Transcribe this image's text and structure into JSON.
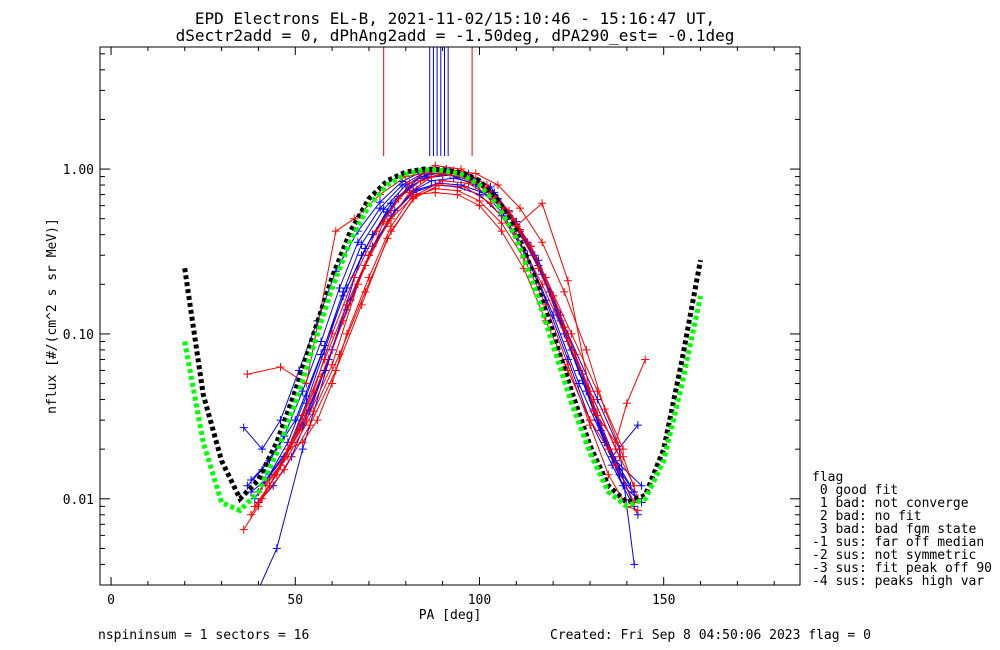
{
  "title_line1": "EPD Electrons EL-B, 2021-11-02/15:10:46 - 15:16:47 UT,",
  "title_line2": "dSectr2add = 0, dPhAng2add = -1.50deg, dPA290_est=  -0.1deg",
  "footer": {
    "left": "nspininsum =  1  sectors = 16",
    "right": "Created: Fri Sep  8 04:50:06 2023   flag = 0"
  },
  "legend": {
    "title": "flag",
    "items": [
      " 0 good fit",
      " 1 bad: not converge",
      " 2 bad: no fit",
      " 3 bad: bad fgm state",
      "-1 sus: far off median",
      "-2 sus: not symmetric",
      "-3 sus: fit peak off 90",
      "-4 sus: peaks high var"
    ]
  },
  "colors": {
    "red_series": "#ff0000",
    "blue_series": "#0000ff",
    "fit_black": "#000000",
    "fit_green": "#00ff00"
  },
  "chart_data": {
    "type": "line",
    "xlabel": "PA [deg]",
    "ylabel": "nflux [#/(cm^2 s sr MeV)]",
    "xlim": [
      -3,
      187
    ],
    "ylim": [
      0.003,
      5.5
    ],
    "yscale": "log",
    "xticks": [
      0,
      50,
      100,
      150
    ],
    "xtick_labels": [
      "0",
      "50",
      "100",
      "150"
    ],
    "yticks": [
      0.01,
      0.1,
      1.0
    ],
    "ytick_labels": [
      "0.01",
      "0.10",
      "1.00"
    ],
    "vertical_markers": [
      {
        "color": "#ff0000",
        "x": [
          74,
          98
        ],
        "y_from": 1.2
      },
      {
        "color": "#0000ff",
        "x": [
          86.5,
          87.5,
          88.5,
          89.5,
          90.5,
          91.5
        ],
        "y_from": 1.2
      }
    ],
    "fit_curves": [
      {
        "color": "#000000",
        "x": [
          20,
          25,
          30,
          35,
          40,
          45,
          50,
          55,
          60,
          65,
          70,
          75,
          80,
          85,
          90,
          95,
          100,
          105,
          110,
          115,
          120,
          125,
          130,
          135,
          140,
          145,
          150,
          155,
          160
        ],
        "y": [
          0.25,
          0.043,
          0.017,
          0.01,
          0.013,
          0.022,
          0.045,
          0.1,
          0.22,
          0.42,
          0.66,
          0.85,
          0.96,
          1.0,
          0.99,
          0.95,
          0.85,
          0.65,
          0.42,
          0.22,
          0.1,
          0.045,
          0.021,
          0.012,
          0.0095,
          0.0105,
          0.02,
          0.07,
          0.28
        ]
      },
      {
        "color": "#00ff00",
        "x": [
          20,
          25,
          30,
          35,
          40,
          45,
          50,
          55,
          60,
          65,
          70,
          75,
          80,
          85,
          90,
          95,
          100,
          105,
          110,
          115,
          120,
          125,
          130,
          135,
          140,
          145,
          150,
          155,
          160
        ],
        "y": [
          0.09,
          0.022,
          0.0095,
          0.0085,
          0.011,
          0.019,
          0.038,
          0.085,
          0.19,
          0.37,
          0.6,
          0.8,
          0.93,
          0.99,
          0.98,
          0.93,
          0.8,
          0.6,
          0.38,
          0.19,
          0.085,
          0.038,
          0.019,
          0.011,
          0.009,
          0.01,
          0.017,
          0.05,
          0.17
        ]
      }
    ],
    "series": [
      {
        "color": "#0000ff",
        "x": [
          37,
          41,
          47,
          52,
          57,
          62,
          67,
          73,
          79,
          85,
          91,
          97,
          103,
          109,
          115,
          121,
          127,
          132,
          137,
          142
        ],
        "y": [
          0.012,
          0.015,
          0.024,
          0.045,
          0.09,
          0.19,
          0.36,
          0.58,
          0.8,
          0.95,
          0.97,
          0.9,
          0.74,
          0.5,
          0.3,
          0.14,
          0.06,
          0.03,
          0.016,
          0.011
        ]
      },
      {
        "color": "#0000ff",
        "x": [
          38,
          42,
          48,
          53,
          58,
          63,
          69,
          75,
          81,
          86,
          92,
          98,
          104,
          110,
          116,
          122,
          128,
          133,
          138,
          143
        ],
        "y": [
          0.011,
          0.013,
          0.02,
          0.038,
          0.08,
          0.17,
          0.33,
          0.55,
          0.78,
          0.9,
          0.92,
          0.85,
          0.7,
          0.46,
          0.26,
          0.12,
          0.052,
          0.026,
          0.014,
          0.01
        ]
      },
      {
        "color": "#0000ff",
        "x": [
          36,
          41,
          46,
          51,
          56,
          61,
          67,
          73,
          79,
          85,
          91,
          97,
          103,
          108,
          114,
          120,
          126,
          131,
          136,
          143
        ],
        "y": [
          0.027,
          0.02,
          0.03,
          0.06,
          0.12,
          0.24,
          0.42,
          0.63,
          0.84,
          0.98,
          1.0,
          0.93,
          0.78,
          0.55,
          0.34,
          0.17,
          0.075,
          0.035,
          0.018,
          0.028
        ]
      },
      {
        "color": "#0000ff",
        "x": [
          40,
          44,
          49,
          54,
          59,
          64,
          70,
          76,
          82,
          87,
          93,
          99,
          105,
          111,
          117,
          123,
          129,
          134,
          139,
          144
        ],
        "y": [
          0.0095,
          0.012,
          0.018,
          0.034,
          0.07,
          0.15,
          0.3,
          0.52,
          0.74,
          0.85,
          0.88,
          0.82,
          0.66,
          0.42,
          0.23,
          0.1,
          0.045,
          0.022,
          0.012,
          0.0095
        ]
      },
      {
        "color": "#0000ff",
        "x": [
          39,
          43,
          48,
          53,
          58,
          63,
          68,
          74,
          80,
          86,
          92,
          98,
          104,
          110,
          116,
          122,
          128,
          133,
          138,
          142
        ],
        "y": [
          0.01,
          0.014,
          0.022,
          0.042,
          0.085,
          0.18,
          0.35,
          0.57,
          0.8,
          0.93,
          0.95,
          0.88,
          0.72,
          0.48,
          0.28,
          0.13,
          0.057,
          0.028,
          0.015,
          0.009
        ]
      },
      {
        "color": "#0000ff",
        "x": [
          37,
          45,
          52,
          60,
          68,
          76,
          84,
          92,
          100,
          108,
          116,
          124,
          132,
          138,
          142
        ],
        "y": [
          0.002,
          0.005,
          0.02,
          0.08,
          0.3,
          0.62,
          0.9,
          0.97,
          0.82,
          0.52,
          0.26,
          0.1,
          0.04,
          0.02,
          0.004
        ]
      },
      {
        "color": "#0000ff",
        "x": [
          38,
          43,
          50,
          57,
          64,
          71,
          78,
          85,
          92,
          99,
          106,
          113,
          120,
          127,
          134,
          141
        ],
        "y": [
          0.013,
          0.017,
          0.03,
          0.075,
          0.19,
          0.4,
          0.68,
          0.88,
          0.92,
          0.8,
          0.55,
          0.3,
          0.13,
          0.05,
          0.022,
          0.012
        ]
      },
      {
        "color": "#0000ff",
        "x": [
          40,
          46,
          52,
          58,
          64,
          70,
          76,
          82,
          88,
          94,
          100,
          106,
          112,
          118,
          124,
          130,
          136,
          143
        ],
        "y": [
          0.011,
          0.016,
          0.028,
          0.06,
          0.14,
          0.3,
          0.52,
          0.72,
          0.8,
          0.78,
          0.7,
          0.52,
          0.32,
          0.16,
          0.07,
          0.03,
          0.016,
          0.008
        ]
      },
      {
        "color": "#0000ff",
        "x": [
          41,
          47,
          53,
          59,
          65,
          71,
          77,
          83,
          89,
          95,
          101,
          107,
          113,
          119,
          125,
          131,
          137,
          144
        ],
        "y": [
          0.012,
          0.018,
          0.033,
          0.07,
          0.16,
          0.34,
          0.56,
          0.75,
          0.82,
          0.8,
          0.72,
          0.56,
          0.36,
          0.18,
          0.08,
          0.034,
          0.017,
          0.012
        ]
      },
      {
        "color": "#ff0000",
        "x": [
          36,
          40,
          46,
          52,
          58,
          64,
          70,
          76,
          82,
          88,
          94,
          100,
          106,
          112,
          118,
          124,
          130,
          135,
          140,
          143
        ],
        "y": [
          0.0065,
          0.009,
          0.016,
          0.032,
          0.07,
          0.15,
          0.3,
          0.5,
          0.68,
          0.76,
          0.74,
          0.64,
          0.47,
          0.29,
          0.15,
          0.065,
          0.028,
          0.014,
          0.009,
          0.0085
        ]
      },
      {
        "color": "#ff0000",
        "x": [
          37,
          46,
          53,
          61,
          66,
          73,
          80,
          86,
          92,
          98,
          104,
          110,
          117,
          124,
          131,
          137,
          140,
          145
        ],
        "y": [
          0.057,
          0.063,
          0.05,
          0.42,
          0.5,
          0.7,
          0.9,
          0.95,
          0.93,
          0.85,
          0.68,
          0.45,
          0.62,
          0.21,
          0.034,
          0.022,
          0.038,
          0.07
        ]
      },
      {
        "color": "#ff0000",
        "x": [
          38,
          43,
          49,
          55,
          60,
          66,
          72,
          78,
          84,
          90,
          96,
          102,
          108,
          114,
          120,
          126,
          132,
          137,
          142
        ],
        "y": [
          0.008,
          0.012,
          0.022,
          0.045,
          0.1,
          0.22,
          0.42,
          0.66,
          0.85,
          0.93,
          0.9,
          0.77,
          0.56,
          0.34,
          0.17,
          0.075,
          0.032,
          0.016,
          0.0095
        ]
      },
      {
        "color": "#ff0000",
        "x": [
          39,
          45,
          51,
          57,
          63,
          69,
          75,
          81,
          87,
          93,
          99,
          105,
          111,
          117,
          123,
          129,
          134,
          139,
          143
        ],
        "y": [
          0.009,
          0.014,
          0.026,
          0.055,
          0.12,
          0.26,
          0.47,
          0.72,
          0.9,
          0.98,
          0.94,
          0.8,
          0.58,
          0.36,
          0.18,
          0.08,
          0.035,
          0.018,
          0.01
        ]
      },
      {
        "color": "#ff0000",
        "x": [
          40,
          46,
          53,
          60,
          67,
          74,
          81,
          88,
          95,
          102,
          109,
          116,
          123,
          130,
          137,
          142
        ],
        "y": [
          0.011,
          0.016,
          0.03,
          0.065,
          0.2,
          0.48,
          0.82,
          1.05,
          1.0,
          0.8,
          0.5,
          0.25,
          0.11,
          0.045,
          0.02,
          0.012
        ]
      },
      {
        "color": "#ff0000",
        "x": [
          48,
          52,
          56,
          60,
          64,
          70,
          76,
          82,
          88,
          94,
          100,
          106,
          112,
          118,
          124,
          130,
          135
        ],
        "y": [
          0.02,
          0.022,
          0.03,
          0.05,
          0.1,
          0.22,
          0.45,
          0.7,
          0.72,
          0.7,
          0.6,
          0.42,
          0.25,
          0.12,
          0.06,
          0.03,
          0.02
        ]
      },
      {
        "color": "#ff0000",
        "x": [
          41,
          47,
          54,
          61,
          68,
          75,
          82,
          89,
          96,
          103,
          110,
          117,
          124,
          131,
          138
        ],
        "y": [
          0.01,
          0.015,
          0.028,
          0.06,
          0.15,
          0.38,
          0.66,
          0.8,
          0.78,
          0.62,
          0.4,
          0.2,
          0.09,
          0.04,
          0.018
        ]
      },
      {
        "color": "#ff0000",
        "x": [
          42,
          48,
          55,
          62,
          69,
          76,
          83,
          90,
          97,
          104,
          111,
          118,
          125,
          132,
          139
        ],
        "y": [
          0.012,
          0.018,
          0.034,
          0.075,
          0.18,
          0.42,
          0.7,
          0.85,
          0.82,
          0.66,
          0.43,
          0.22,
          0.1,
          0.045,
          0.02
        ]
      }
    ]
  }
}
